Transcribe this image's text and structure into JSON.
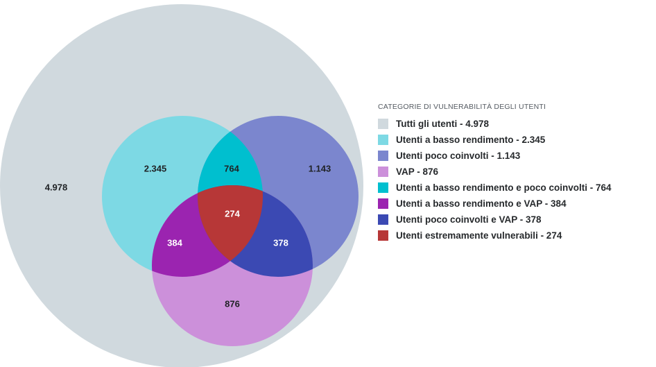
{
  "legend": {
    "title": "CATEGORIE DI VULNERABILITÀ DEGLI UTENTI",
    "items": [
      {
        "label": "Tutti gli utenti - 4.978",
        "color": "#d0d9de"
      },
      {
        "label": "Utenti a basso rendimento - 2.345",
        "color": "#7dd9e4"
      },
      {
        "label": "Utenti poco coinvolti - 1.143",
        "color": "#7b86ce"
      },
      {
        "label": "VAP - 876",
        "color": "#cc90da"
      },
      {
        "label": "Utenti a basso rendimento e poco coinvolti - 764",
        "color": "#00bfcf"
      },
      {
        "label": "Utenti a basso rendimento e VAP - 384",
        "color": "#9b24b0"
      },
      {
        "label": "Utenti poco coinvolti e VAP - 378",
        "color": "#3b49b3"
      },
      {
        "label": "Utenti estremamente vulnerabili - 274",
        "color": "#b73737"
      }
    ]
  },
  "venn": {
    "all_users": {
      "value": "4.978",
      "color": "#d0d9de"
    },
    "low_performance_only": {
      "value": "2.345",
      "color": "#7dd9e4"
    },
    "low_engagement_only": {
      "value": "1.143",
      "color": "#7b86ce"
    },
    "vap_only": {
      "value": "876",
      "color": "#cc90da"
    },
    "low_performance_and_low_engagement": {
      "value": "764",
      "color": "#00bfcf"
    },
    "low_performance_and_vap": {
      "value": "384",
      "color": "#9b24b0"
    },
    "low_engagement_and_vap": {
      "value": "378",
      "color": "#3b49b3"
    },
    "extremely_vulnerable": {
      "value": "274",
      "color": "#b73737"
    }
  }
}
